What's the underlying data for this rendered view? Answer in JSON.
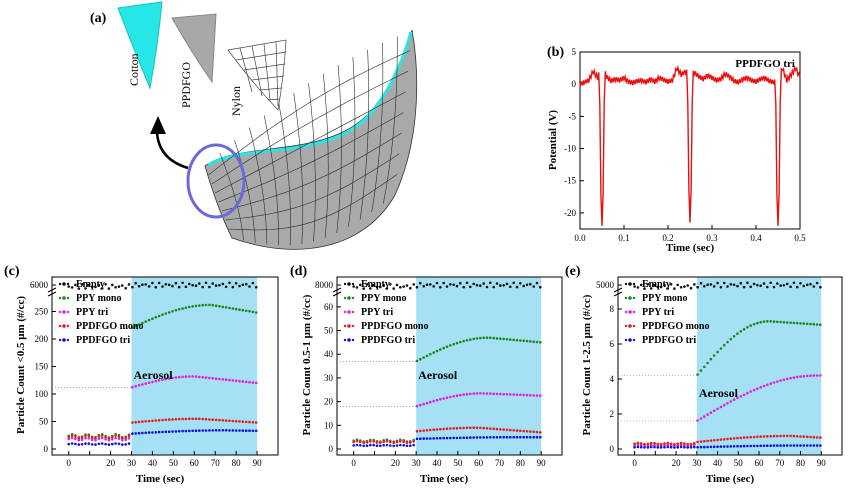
{
  "panel_labels": {
    "a": "(a)",
    "b": "(b)",
    "c": "(c)",
    "d": "(d)",
    "e": "(e)"
  },
  "illustration": {
    "materials": [
      {
        "name": "Cotton",
        "color": "#27e6e6"
      },
      {
        "name": "PPDFGO",
        "color": "#a8a8a8"
      },
      {
        "name": "Nylon",
        "color": "#ffffff"
      }
    ],
    "circle_color": "#6a6ad8"
  },
  "colors": {
    "empty": "#111111",
    "ppy_mono": "#1a8a1a",
    "ppy_tri": "#e020e0",
    "ppdfgo_mono": "#e02020",
    "ppdfgo_tri": "#1010e0",
    "aerosol_band": "#a6e0f4",
    "potential": "#e81010"
  },
  "chart_data": [
    {
      "id": "b",
      "type": "line",
      "annotation": "PPDFGO tri",
      "xlabel": "Time (sec)",
      "ylabel": "Potential (V)",
      "xlim": [
        0.0,
        0.5
      ],
      "ylim": [
        -22.5,
        5
      ],
      "xticks": [
        "0.0",
        "0.1",
        "0.2",
        "0.3",
        "0.4",
        "0.5"
      ],
      "yticks": [
        "5",
        "0",
        "-5",
        "-10",
        "-15",
        "-20"
      ],
      "baseline": [
        0.0,
        0.3,
        0.6,
        2.0,
        1.0,
        3.0,
        1.2,
        0.5,
        0.8,
        0.6,
        1.0,
        0.4,
        0.2,
        0.5,
        0.6,
        0.3,
        0.8,
        0.4,
        1.0,
        0.7,
        0.4,
        0.6,
        2.5,
        1.5,
        2.0,
        1.6,
        1.8,
        1.2,
        0.8,
        1.4,
        1.0,
        0.6,
        0.8,
        1.6,
        1.2,
        0.5,
        0.3,
        0.8,
        1.0,
        0.6,
        0.4,
        0.8,
        1.0,
        0.5,
        0.3,
        0.6,
        2.5,
        0.6,
        1.5,
        2.5,
        1.0
      ],
      "spikes": [
        {
          "x": 0.05,
          "y": -22
        },
        {
          "x": 0.25,
          "y": -21.5
        },
        {
          "x": 0.45,
          "y": -22
        }
      ]
    },
    {
      "id": "c",
      "type": "scatter",
      "ylabel": "Particle Count <0.5 μm (#/cc)",
      "xlabel": "Time (sec)",
      "xlim": [
        -8,
        100
      ],
      "xticks": [
        "0",
        "10",
        "20",
        "30",
        "40",
        "50",
        "60",
        "70",
        "80",
        "90"
      ],
      "yticks": [
        "6000",
        "250",
        "200",
        "150",
        "100",
        "50",
        "0"
      ],
      "band_label": "Aerosol",
      "aerosol_start": 30,
      "aerosol_end": 90,
      "legend": [
        "Empty",
        "PPY mono",
        "PPY tri",
        "PPDFGO mono",
        "PPDFGO tri"
      ],
      "series": [
        {
          "name": "Empty",
          "pre": 6000,
          "peak": 6000,
          "end": 6000,
          "tpeak": 60,
          "wiggle": 1.0
        },
        {
          "name": "PPY mono",
          "pre": 24,
          "start": 220,
          "peak": 262,
          "end": 248,
          "tpeak": 68,
          "wiggle": 0
        },
        {
          "name": "PPY tri",
          "pre": 18,
          "start": 112,
          "peak": 132,
          "end": 120,
          "tpeak": 60,
          "wiggle": 0
        },
        {
          "name": "PPDFGO mono",
          "pre": 22,
          "start": 48,
          "peak": 55,
          "end": 48,
          "tpeak": 62,
          "wiggle": 0
        },
        {
          "name": "PPDFGO tri",
          "pre": 9,
          "start": 28,
          "peak": 34,
          "end": 33,
          "tpeak": 75,
          "wiggle": 0
        }
      ]
    },
    {
      "id": "d",
      "type": "scatter",
      "ylabel": "Particle Count 0.5-1 μm (#/cc)",
      "xlabel": "Time (sec)",
      "xlim": [
        -8,
        100
      ],
      "xticks": [
        "0",
        "10",
        "20",
        "30",
        "40",
        "50",
        "60",
        "70",
        "80",
        "90"
      ],
      "yticks": [
        "8000",
        "60",
        "50",
        "40",
        "30",
        "20",
        "10",
        "0"
      ],
      "band_label": "Aerosol",
      "aerosol_start": 30,
      "aerosol_end": 90,
      "legend": [
        "Empty",
        "PPY mono",
        "PPY tri",
        "PPDFGO mono",
        "PPDFGO tri"
      ],
      "series": [
        {
          "name": "Empty",
          "pre": 8000,
          "peak": 8000,
          "end": 8000,
          "tpeak": 60,
          "wiggle": 1.0
        },
        {
          "name": "PPY mono",
          "pre": 3.5,
          "start": 37,
          "peak": 47,
          "end": 45,
          "tpeak": 65,
          "wiggle": 0
        },
        {
          "name": "PPY tri",
          "pre": 3,
          "start": 18,
          "peak": 23.5,
          "end": 22.5,
          "tpeak": 62,
          "wiggle": 0
        },
        {
          "name": "PPDFGO mono",
          "pre": 3,
          "start": 7.5,
          "peak": 9,
          "end": 7,
          "tpeak": 60,
          "wiggle": 0
        },
        {
          "name": "PPDFGO tri",
          "pre": 1.5,
          "start": 4.3,
          "peak": 5,
          "end": 5,
          "tpeak": 80,
          "wiggle": 0
        }
      ]
    },
    {
      "id": "e",
      "type": "scatter",
      "ylabel": "Particle Count 1-2.5 μm (#/cc)",
      "xlabel": "Time (sec)",
      "xlim": [
        -8,
        100
      ],
      "xticks": [
        "0",
        "10",
        "20",
        "30",
        "40",
        "50",
        "60",
        "70",
        "80",
        "90"
      ],
      "yticks": [
        "5000",
        "8",
        "6",
        "4",
        "2",
        "0"
      ],
      "band_label": "Aerosol",
      "aerosol_start": 30,
      "aerosol_end": 90,
      "legend": [
        "Empty",
        "PPY mono",
        "PPY tri",
        "PPDFGO mono",
        "PPDFGO tri"
      ],
      "series": [
        {
          "name": "Empty",
          "pre": 5000,
          "peak": 5000,
          "end": 5000,
          "tpeak": 60,
          "wiggle": 1.0
        },
        {
          "name": "PPY mono",
          "pre": 0.3,
          "start": 4.2,
          "peak": 7.3,
          "end": 7.1,
          "tpeak": 65,
          "wiggle": 0
        },
        {
          "name": "PPY tri",
          "pre": 0.2,
          "start": 1.6,
          "peak": 4.2,
          "end": 4.2,
          "tpeak": 88,
          "wiggle": 0
        },
        {
          "name": "PPDFGO mono",
          "pre": 0.3,
          "start": 0.4,
          "peak": 0.75,
          "end": 0.65,
          "tpeak": 75,
          "wiggle": 0
        },
        {
          "name": "PPDFGO tri",
          "pre": 0.1,
          "start": 0.1,
          "peak": 0.2,
          "end": 0.2,
          "tpeak": 80,
          "wiggle": 0
        }
      ]
    }
  ]
}
